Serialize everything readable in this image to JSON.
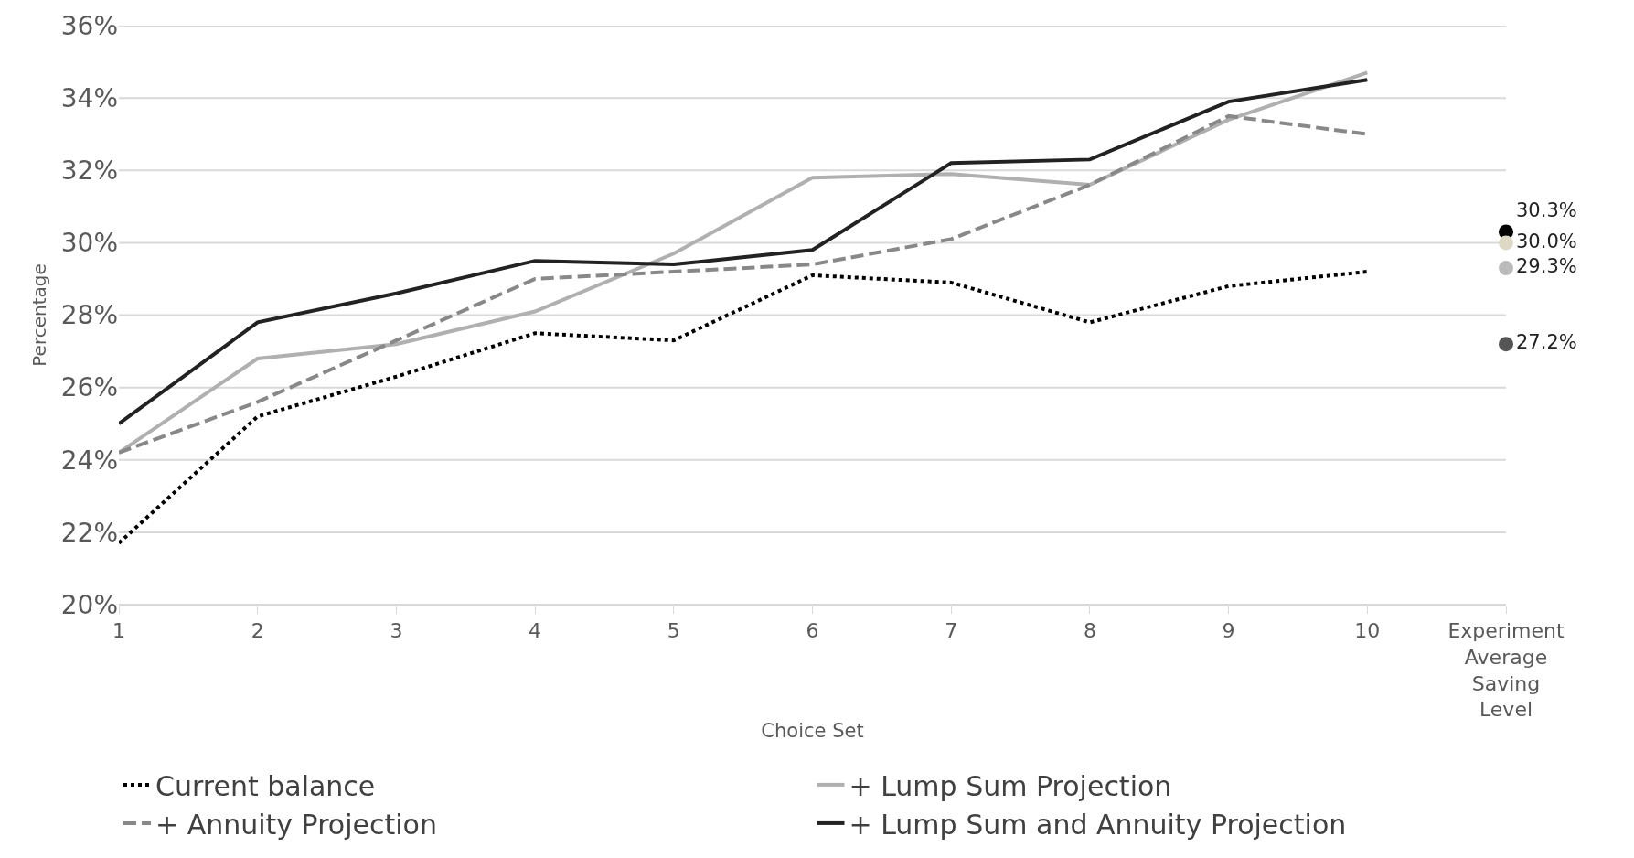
{
  "chart_data": {
    "type": "line",
    "xlabel": "Choice Set",
    "ylabel": "Percentage",
    "categories": [
      "1",
      "2",
      "3",
      "4",
      "5",
      "6",
      "7",
      "8",
      "9",
      "10",
      "Experiment Average Saving Level"
    ],
    "series": [
      {
        "name": "Current balance",
        "color": "#000000",
        "line_style": "dotted",
        "values": [
          21.7,
          25.2,
          26.3,
          27.5,
          27.3,
          29.1,
          28.9,
          27.8,
          28.8,
          29.2,
          null
        ]
      },
      {
        "name": "+ Lump Sum Projection",
        "color": "#b0b0b0",
        "line_style": "solid",
        "values": [
          24.2,
          26.8,
          27.2,
          28.1,
          29.7,
          31.8,
          31.9,
          31.6,
          33.4,
          34.7,
          null
        ]
      },
      {
        "name": "+ Annuity Projection",
        "color": "#888888",
        "line_style": "dashed",
        "values": [
          24.2,
          25.6,
          27.3,
          29.0,
          29.2,
          29.4,
          30.1,
          31.6,
          33.5,
          33.0,
          null
        ]
      },
      {
        "name": "+ Lump Sum and Annuity Projection",
        "color": "#222222",
        "line_style": "solid",
        "values": [
          25.0,
          27.8,
          28.6,
          29.5,
          29.4,
          29.8,
          32.2,
          32.3,
          33.9,
          34.5,
          null
        ]
      },
      {
        "type": "scatter",
        "marker": "circle",
        "x": [
          "Experiment Average Saving Level",
          "Experiment Average Saving Level",
          "Experiment Average Saving Level",
          "Experiment Average Saving Level"
        ],
        "values": [
          30.3,
          30.0,
          29.3,
          27.2
        ],
        "colors": [
          "#000000",
          "#ddd8c4",
          "#bbbbbb",
          "#555555"
        ],
        "value_labels": [
          "30.3%",
          "30.0%",
          "29.3%",
          "27.2%"
        ]
      }
    ],
    "ylim": [
      20,
      36
    ],
    "yticks": [
      {
        "value": 20,
        "label": "20%"
      },
      {
        "value": 22,
        "label": "22%"
      },
      {
        "value": 24,
        "label": "24%"
      },
      {
        "value": 26,
        "label": "26%"
      },
      {
        "value": 28,
        "label": "28%"
      },
      {
        "value": 30,
        "label": "30%"
      },
      {
        "value": 32,
        "label": "32%"
      },
      {
        "value": 34,
        "label": "34%"
      },
      {
        "value": 36,
        "label": "36%"
      }
    ],
    "grid": "y",
    "legend": "bottom",
    "marker": "none"
  }
}
